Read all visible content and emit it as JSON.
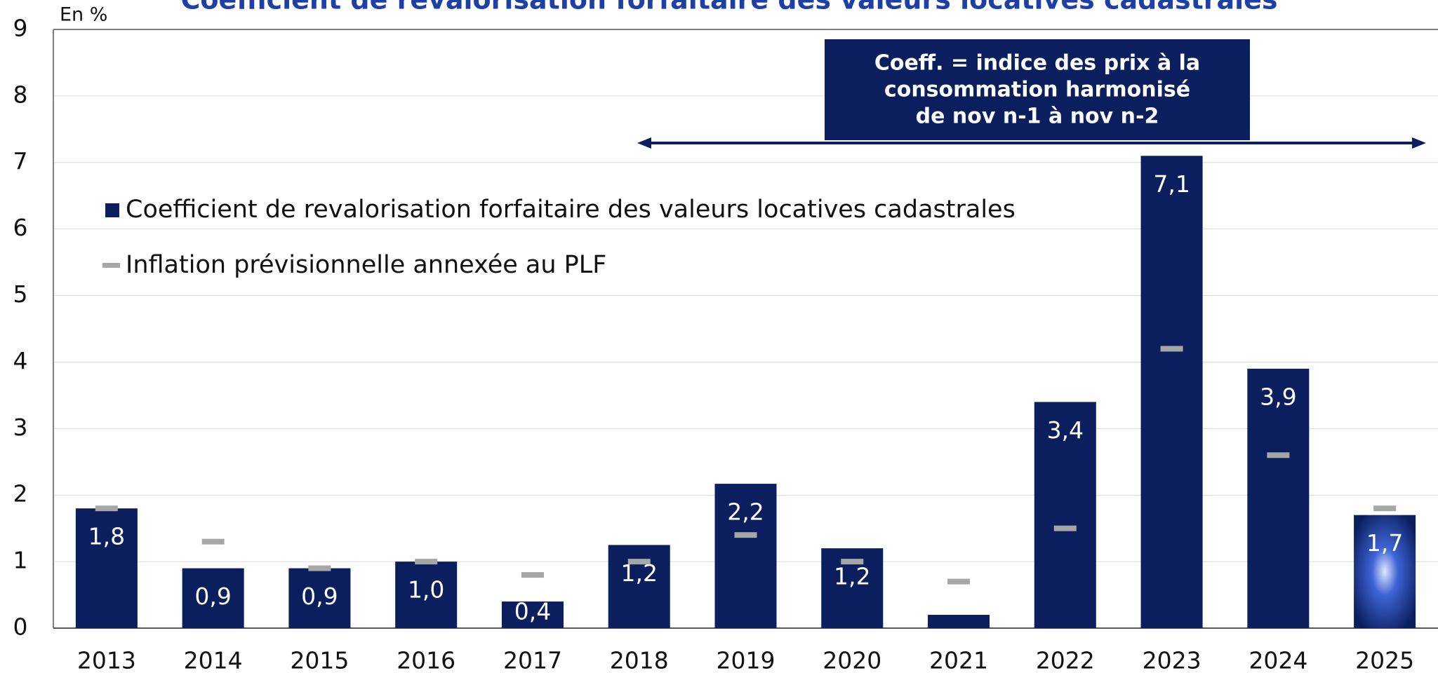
{
  "chart_data": {
    "type": "bar",
    "title": "Coefficient de revalorisation forfaitaire des valeurs locatives cadastrales",
    "y_label": "En %",
    "annotation": [
      "Coeff. = indice des prix à la",
      "consommation harmonisé",
      "de nov n-1 à nov n-2"
    ],
    "categories": [
      "2013",
      "2014",
      "2015",
      "2016",
      "2017",
      "2018",
      "2019",
      "2020",
      "2021",
      "2022",
      "2023",
      "2024",
      "2025"
    ],
    "series": [
      {
        "name": "Coefficient de revalorisation forfaitaire des valeurs locatives cadastrales",
        "color": "#0b1f5e",
        "values": [
          1.8,
          0.9,
          0.9,
          1.0,
          0.4,
          1.25,
          2.17,
          1.2,
          0.2,
          3.4,
          7.1,
          3.9,
          1.7
        ],
        "value_labels": [
          "1,8",
          "0,9",
          "0,9",
          "1,0",
          "0,4",
          "1,2",
          "2,2",
          "1,2",
          null,
          "3,4",
          "7,1",
          "3,9",
          "1,7"
        ]
      },
      {
        "name": "Inflation prévisionnelle annexée au PLF",
        "color": "#a6a6a6",
        "marker": "dash",
        "values": [
          1.8,
          1.3,
          0.9,
          1.0,
          0.8,
          1.0,
          1.4,
          1.0,
          0.7,
          1.5,
          4.2,
          2.6,
          1.8
        ]
      }
    ],
    "ylim": [
      0,
      9
    ],
    "yticks": [
      0,
      1,
      2,
      3,
      4,
      5,
      6,
      7,
      8,
      9
    ],
    "grid": true
  }
}
